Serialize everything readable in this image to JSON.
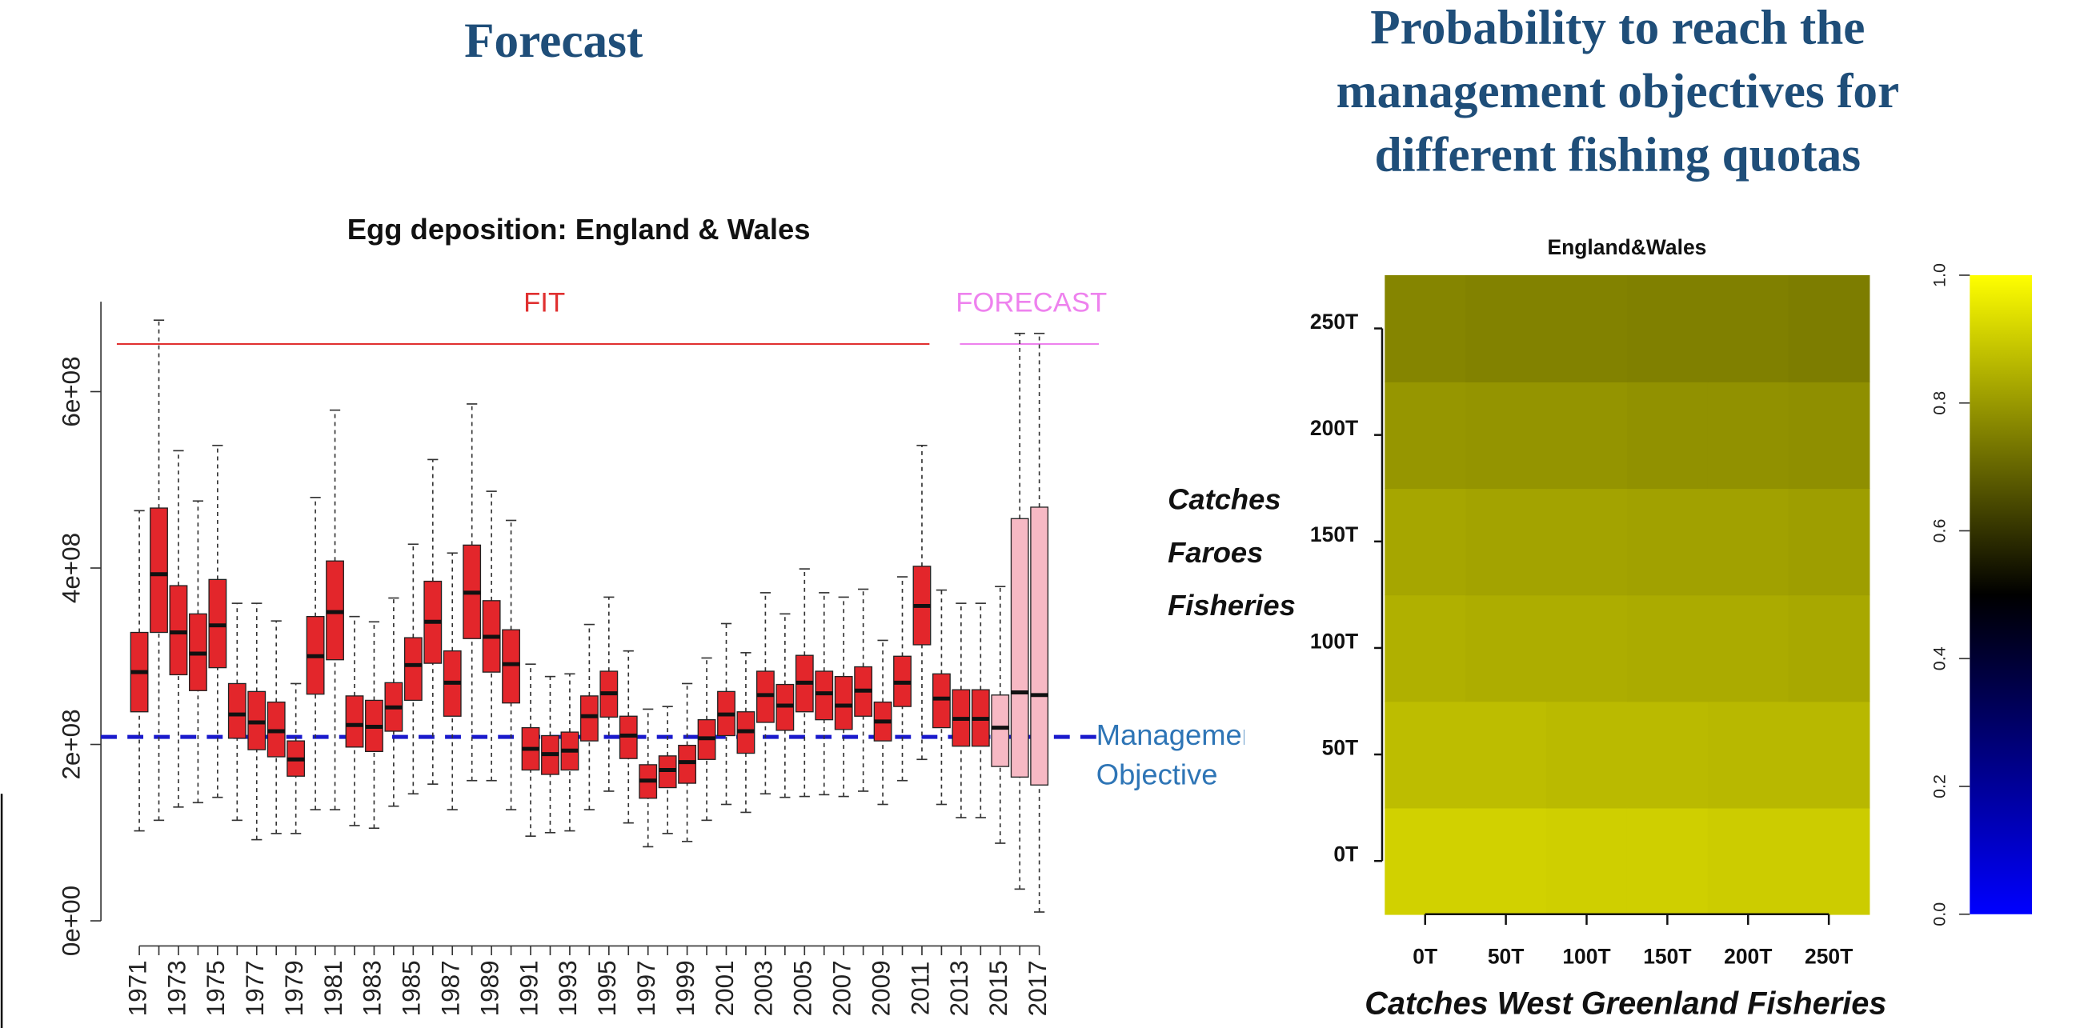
{
  "titles": {
    "left": "Forecast",
    "right": "Probability to reach the management objectives for different fishing quotas"
  },
  "chart_data": [
    {
      "type": "box",
      "title": "Egg deposition: England & Wales",
      "categories": [
        "1971",
        null,
        "1973",
        null,
        "1975",
        null,
        "1977",
        null,
        "1979",
        null,
        "1981",
        null,
        "1983",
        null,
        "1985",
        null,
        "1987",
        null,
        "1989",
        null,
        "1991",
        null,
        "1993",
        null,
        "1995",
        null,
        "1997",
        null,
        "1999",
        null,
        "2001",
        null,
        "2003",
        null,
        "2005",
        null,
        "2007",
        null,
        "2009",
        null,
        "2011",
        null,
        "2013",
        null,
        "2015",
        null,
        "2017"
      ],
      "boxes": [
        {
          "min": 102000000,
          "q1": 237000000,
          "median": 282000000,
          "q3": 327000000,
          "max": 465000000
        },
        {
          "min": 114000000,
          "q1": 327000000,
          "median": 393000000,
          "q3": 468000000,
          "max": 681000000
        },
        {
          "min": 129000000,
          "q1": 279000000,
          "median": 327000000,
          "q3": 380000000,
          "max": 533000000
        },
        {
          "min": 134000000,
          "q1": 261000000,
          "median": 303000000,
          "q3": 348000000,
          "max": 476000000
        },
        {
          "min": 140000000,
          "q1": 287000000,
          "median": 335000000,
          "q3": 387000000,
          "max": 539000000
        },
        {
          "min": 114000000,
          "q1": 207000000,
          "median": 234000000,
          "q3": 269000000,
          "max": 360000000
        },
        {
          "min": 92000000,
          "q1": 194000000,
          "median": 225000000,
          "q3": 260000000,
          "max": 360000000
        },
        {
          "min": 99000000,
          "q1": 186000000,
          "median": 215000000,
          "q3": 248000000,
          "max": 340000000
        },
        {
          "min": 99000000,
          "q1": 164000000,
          "median": 183000000,
          "q3": 204000000,
          "max": 269000000
        },
        {
          "min": 126000000,
          "q1": 257000000,
          "median": 300000000,
          "q3": 345000000,
          "max": 480000000
        },
        {
          "min": 126000000,
          "q1": 296000000,
          "median": 350000000,
          "q3": 408000000,
          "max": 579000000
        },
        {
          "min": 108000000,
          "q1": 197000000,
          "median": 222000000,
          "q3": 255000000,
          "max": 345000000
        },
        {
          "min": 105000000,
          "q1": 192000000,
          "median": 220000000,
          "q3": 250000000,
          "max": 339000000
        },
        {
          "min": 130000000,
          "q1": 215000000,
          "median": 242000000,
          "q3": 270000000,
          "max": 366000000
        },
        {
          "min": 144000000,
          "q1": 250000000,
          "median": 290000000,
          "q3": 321000000,
          "max": 427000000
        },
        {
          "min": 155000000,
          "q1": 292000000,
          "median": 339000000,
          "q3": 385000000,
          "max": 523000000
        },
        {
          "min": 126000000,
          "q1": 232000000,
          "median": 270000000,
          "q3": 306000000,
          "max": 417000000
        },
        {
          "min": 159000000,
          "q1": 320000000,
          "median": 372000000,
          "q3": 426000000,
          "max": 586000000
        },
        {
          "min": 159000000,
          "q1": 282000000,
          "median": 322000000,
          "q3": 363000000,
          "max": 487000000
        },
        {
          "min": 126000000,
          "q1": 247000000,
          "median": 291000000,
          "q3": 330000000,
          "max": 454000000
        },
        {
          "min": 96000000,
          "q1": 171000000,
          "median": 195000000,
          "q3": 219000000,
          "max": 291000000
        },
        {
          "min": 100000000,
          "q1": 166000000,
          "median": 189000000,
          "q3": 210000000,
          "max": 277000000
        },
        {
          "min": 102000000,
          "q1": 171000000,
          "median": 193000000,
          "q3": 214000000,
          "max": 280000000
        },
        {
          "min": 126000000,
          "q1": 204000000,
          "median": 232000000,
          "q3": 255000000,
          "max": 336000000
        },
        {
          "min": 147000000,
          "q1": 231000000,
          "median": 258000000,
          "q3": 283000000,
          "max": 367000000
        },
        {
          "min": 111000000,
          "q1": 184000000,
          "median": 210000000,
          "q3": 232000000,
          "max": 306000000
        },
        {
          "min": 84000000,
          "q1": 139000000,
          "median": 159000000,
          "q3": 177000000,
          "max": 240000000
        },
        {
          "min": 99000000,
          "q1": 151000000,
          "median": 171000000,
          "q3": 187000000,
          "max": 243000000
        },
        {
          "min": 90000000,
          "q1": 156000000,
          "median": 180000000,
          "q3": 199000000,
          "max": 269000000
        },
        {
          "min": 114000000,
          "q1": 183000000,
          "median": 207000000,
          "q3": 228000000,
          "max": 298000000
        },
        {
          "min": 132000000,
          "q1": 210000000,
          "median": 234000000,
          "q3": 260000000,
          "max": 337000000
        },
        {
          "min": 123000000,
          "q1": 190000000,
          "median": 215000000,
          "q3": 237000000,
          "max": 304000000
        },
        {
          "min": 144000000,
          "q1": 225000000,
          "median": 256000000,
          "q3": 283000000,
          "max": 372000000
        },
        {
          "min": 140000000,
          "q1": 216000000,
          "median": 244000000,
          "q3": 268000000,
          "max": 348000000
        },
        {
          "min": 141000000,
          "q1": 237000000,
          "median": 270000000,
          "q3": 301000000,
          "max": 399000000
        },
        {
          "min": 143000000,
          "q1": 228000000,
          "median": 258000000,
          "q3": 283000000,
          "max": 372000000
        },
        {
          "min": 141000000,
          "q1": 217000000,
          "median": 244000000,
          "q3": 277000000,
          "max": 367000000
        },
        {
          "min": 147000000,
          "q1": 232000000,
          "median": 261000000,
          "q3": 288000000,
          "max": 376000000
        },
        {
          "min": 132000000,
          "q1": 204000000,
          "median": 226000000,
          "q3": 248000000,
          "max": 318000000
        },
        {
          "min": 159000000,
          "q1": 243000000,
          "median": 270000000,
          "q3": 300000000,
          "max": 390000000
        },
        {
          "min": 183000000,
          "q1": 313000000,
          "median": 357000000,
          "q3": 402000000,
          "max": 539000000
        },
        {
          "min": 132000000,
          "q1": 219000000,
          "median": 252000000,
          "q3": 280000000,
          "max": 375000000
        },
        {
          "min": 117000000,
          "q1": 198000000,
          "median": 229000000,
          "q3": 262000000,
          "max": 360000000
        },
        {
          "min": 117000000,
          "q1": 198000000,
          "median": 229000000,
          "q3": 262000000,
          "max": 360000000
        },
        {
          "min": 88000000,
          "q1": 175000000,
          "median": 219000000,
          "q3": 256000000,
          "max": 379000000
        },
        {
          "min": 36000000,
          "q1": 163000000,
          "median": 259000000,
          "q3": 456000000,
          "max": 666000000
        },
        {
          "min": 10000000,
          "q1": 154000000,
          "median": 256000000,
          "q3": 469000000,
          "max": 666000000
        }
      ],
      "colors": [
        "#e3262b",
        "#e3262b",
        "#e3262b",
        "#e3262b",
        "#e3262b",
        "#e3262b",
        "#e3262b",
        "#e3262b",
        "#e3262b",
        "#e3262b",
        "#e3262b",
        "#e3262b",
        "#e3262b",
        "#e3262b",
        "#e3262b",
        "#e3262b",
        "#e3262b",
        "#e3262b",
        "#e3262b",
        "#e3262b",
        "#e3262b",
        "#e3262b",
        "#e3262b",
        "#e3262b",
        "#e3262b",
        "#e3262b",
        "#e3262b",
        "#e3262b",
        "#e3262b",
        "#e3262b",
        "#e3262b",
        "#e3262b",
        "#e3262b",
        "#e3262b",
        "#e3262b",
        "#e3262b",
        "#e3262b",
        "#e3262b",
        "#e3262b",
        "#e3262b",
        "#e3262b",
        "#e3262b",
        "#e3262b",
        "#e3262b",
        "#f7b9c4",
        "#f7b9c4",
        "#f7b9c4"
      ],
      "ylim": [
        0,
        702000000
      ],
      "yticks": [
        {
          "value": 0,
          "label": "0e+00"
        },
        {
          "value": 200000000,
          "label": "2e+08"
        },
        {
          "value": 400000000,
          "label": "4e+08"
        },
        {
          "value": 600000000,
          "label": "6e+08"
        }
      ],
      "objective": {
        "value": 208500000,
        "label": "Management Objective",
        "color": "#1a1acc",
        "label_color": "#2e75b6"
      },
      "annotations": [
        {
          "text": "FIT",
          "color": "#e03030"
        },
        {
          "text": "FORECAST",
          "color": "#ee82ee"
        }
      ]
    },
    {
      "type": "heatmap",
      "title": "England&Wales",
      "xlabel": "Catches West Greenland Fisheries",
      "ylabel": "Catches Faroes Fisheries",
      "x": [
        "0T",
        "50T",
        "100T",
        "150T",
        "200T",
        "250T"
      ],
      "y": [
        "0T",
        "50T",
        "100T",
        "150T",
        "200T",
        "250T"
      ],
      "values": [
        [
          0.91,
          0.91,
          0.905,
          0.905,
          0.9,
          0.9
        ],
        [
          0.87,
          0.87,
          0.865,
          0.865,
          0.86,
          0.86
        ],
        [
          0.845,
          0.84,
          0.84,
          0.835,
          0.835,
          0.83
        ],
        [
          0.825,
          0.82,
          0.82,
          0.815,
          0.815,
          0.81
        ],
        [
          0.795,
          0.79,
          0.79,
          0.785,
          0.785,
          0.78
        ],
        [
          0.76,
          0.755,
          0.755,
          0.75,
          0.75,
          0.745
        ]
      ],
      "colorscale": [
        {
          "value": 0,
          "color": "#0000ff"
        },
        {
          "value": 0.5,
          "color": "#000000"
        },
        {
          "value": 1,
          "color": "#ffff00"
        }
      ],
      "clim": [
        0,
        1
      ],
      "cticks": [
        {
          "value": 0,
          "label": "0.0"
        },
        0.2,
        0.4,
        0.6,
        0.8,
        {
          "value": 1,
          "label": "1.0"
        }
      ]
    }
  ]
}
